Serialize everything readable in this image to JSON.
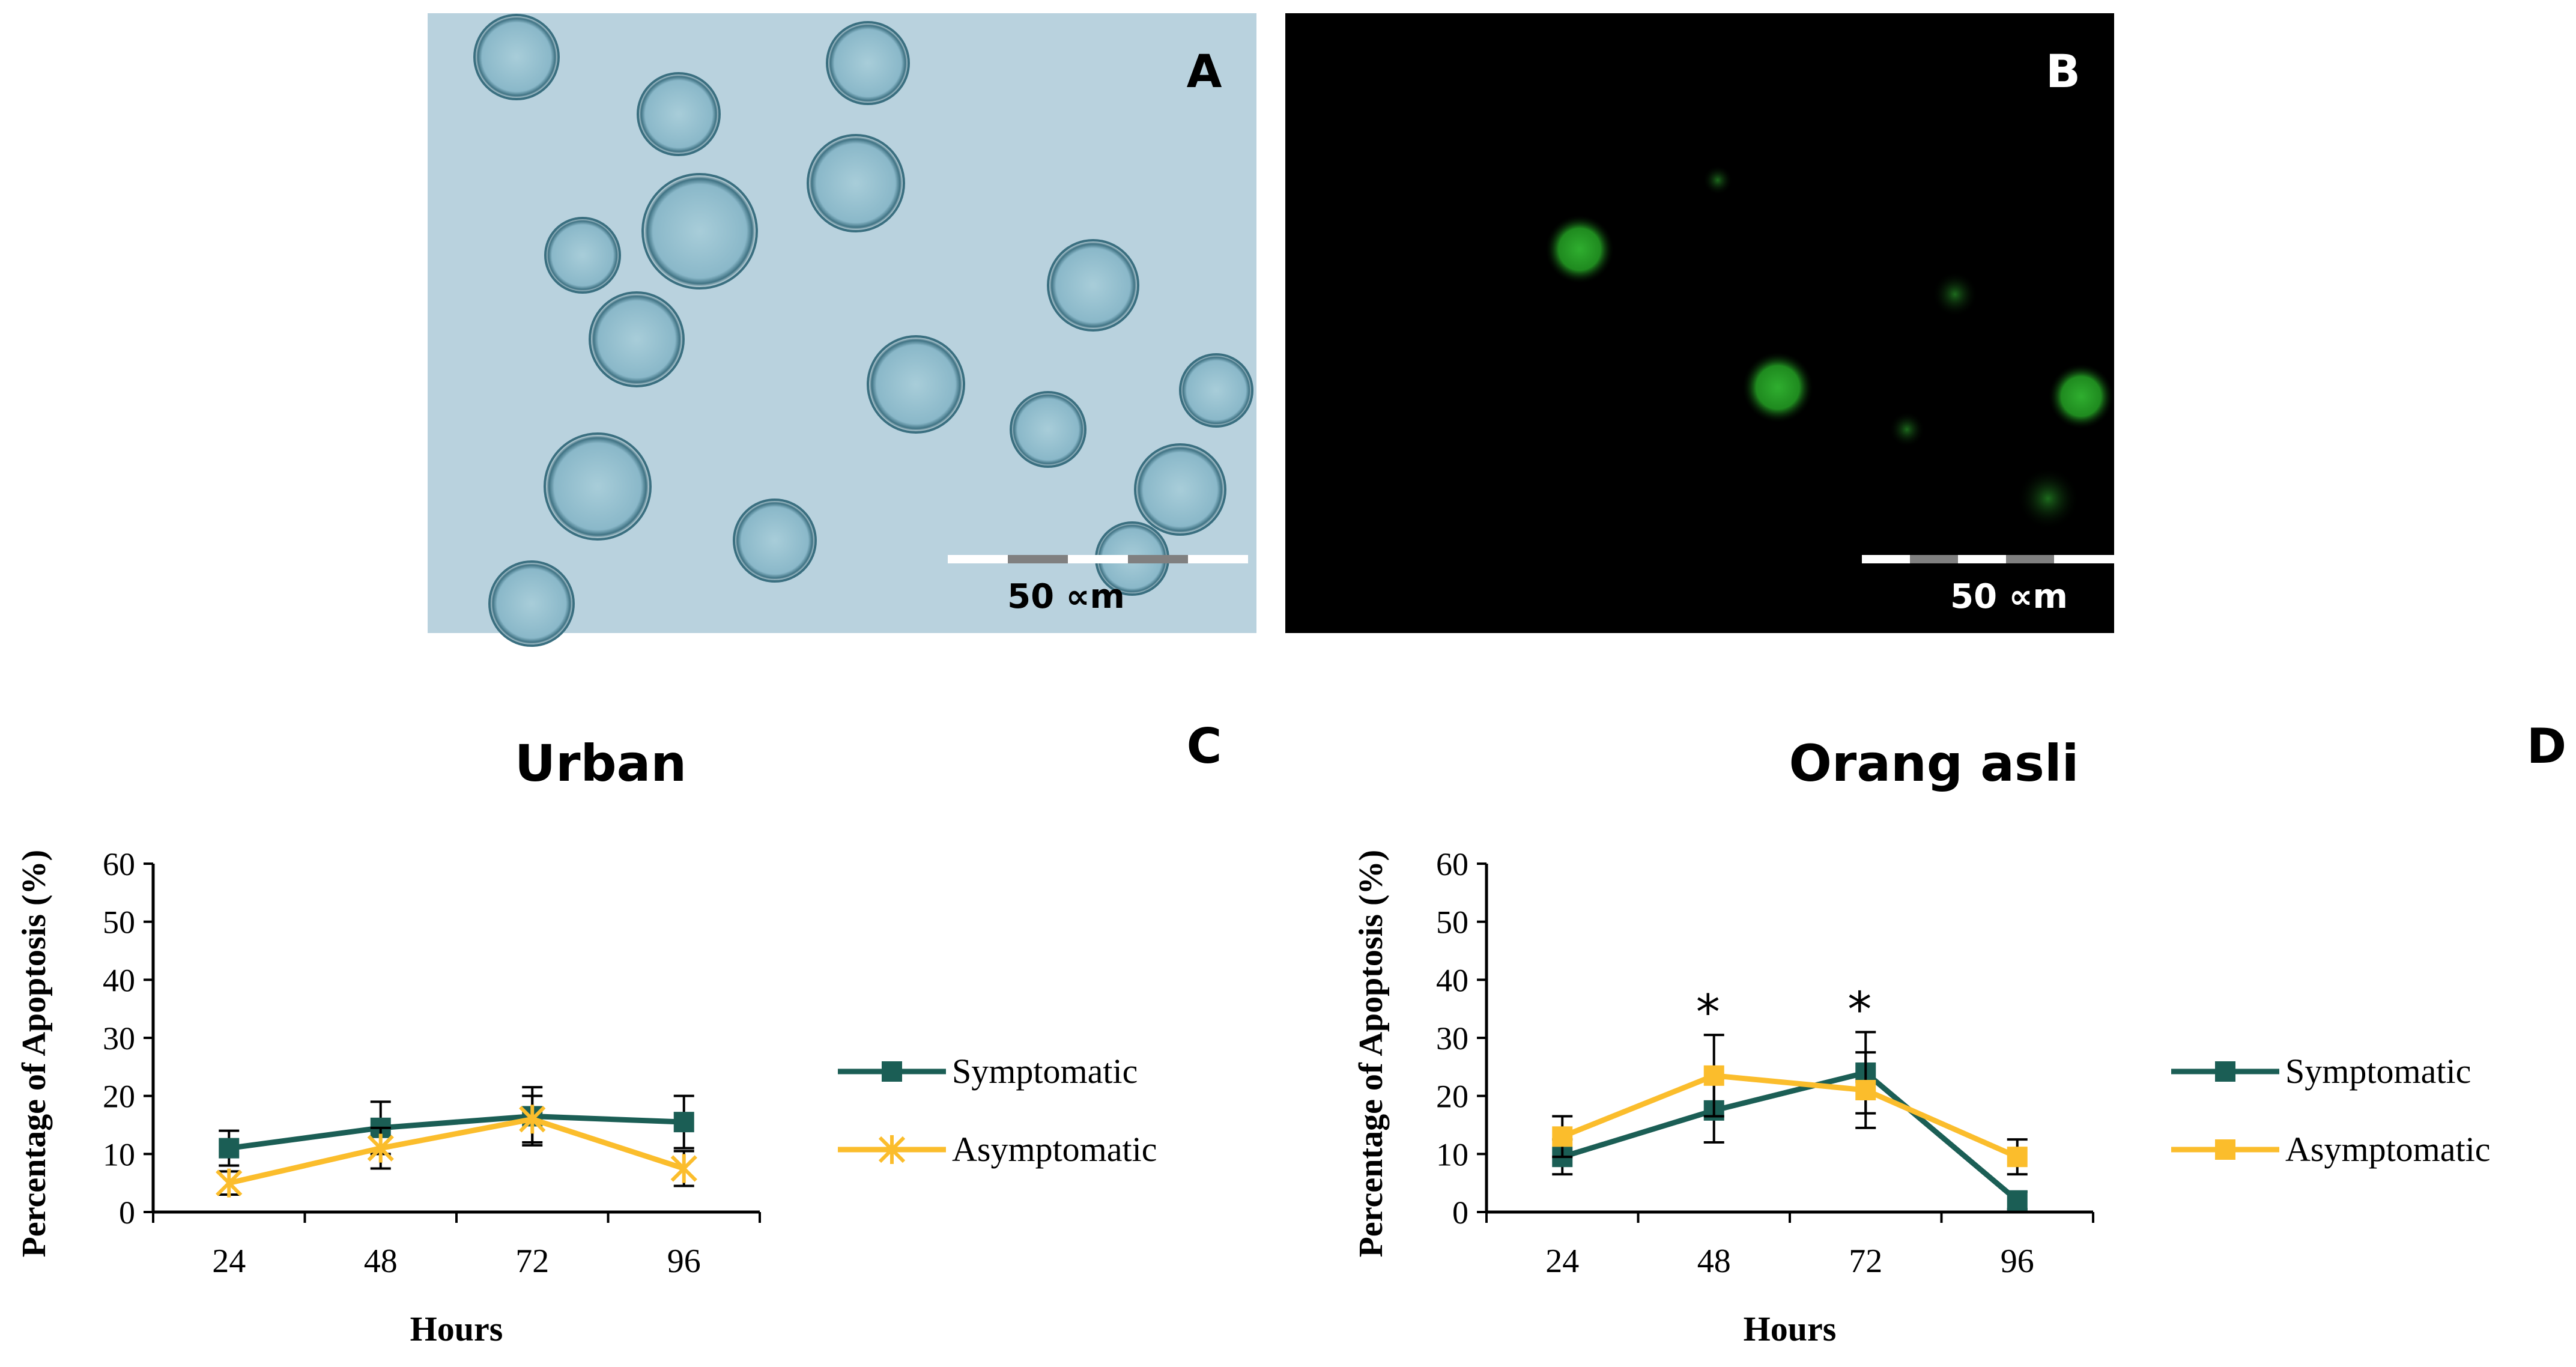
{
  "panels": {
    "a": {
      "letter": "A",
      "scale_label": "50 ∝m"
    },
    "b": {
      "letter": "B",
      "scale_label": "50 ∝m"
    }
  },
  "chart_data": [
    {
      "type": "line",
      "panel_letter": "C",
      "title": "Urban",
      "xlabel": "Hours",
      "ylabel": "Percentage of Apoptosis (%)",
      "categories": [
        "24",
        "48",
        "72",
        "96"
      ],
      "ylim": [
        0,
        60
      ],
      "yticks": [
        "0",
        "10",
        "20",
        "30",
        "40",
        "50",
        "60"
      ],
      "grid": false,
      "legend_position": "right",
      "series": [
        {
          "name": "Symptomatic",
          "color": "#1b5e55",
          "marker": "square",
          "values": [
            11,
            14.5,
            16.5,
            15.5
          ],
          "errors": [
            3,
            4.5,
            5,
            4.5
          ]
        },
        {
          "name": "Asymptomatic",
          "color": "#fbbd2c",
          "marker": "star",
          "values": [
            5,
            11,
            16,
            7.5
          ],
          "errors": [
            2,
            3.5,
            4,
            3
          ]
        }
      ],
      "annotations": []
    },
    {
      "type": "line",
      "panel_letter": "D",
      "title": "Orang asli",
      "xlabel": "Hours",
      "ylabel": "Percentage of Apoptosis (%)",
      "categories": [
        "24",
        "48",
        "72",
        "96"
      ],
      "ylim": [
        0,
        60
      ],
      "yticks": [
        "0",
        "10",
        "20",
        "30",
        "40",
        "50",
        "60"
      ],
      "grid": false,
      "legend_position": "right",
      "series": [
        {
          "name": "Symptomatic",
          "color": "#1b5e55",
          "marker": "square",
          "values": [
            9.5,
            17.5,
            24,
            2
          ],
          "errors": [
            3,
            5.5,
            7,
            1.5
          ]
        },
        {
          "name": "Asymptomatic",
          "color": "#fbbd2c",
          "marker": "square",
          "values": [
            13,
            23.5,
            21,
            9.5
          ],
          "errors": [
            3.5,
            7,
            6.5,
            3
          ]
        }
      ],
      "annotations": [
        {
          "category": "48",
          "text": "*"
        },
        {
          "category": "72",
          "text": "*"
        }
      ]
    }
  ]
}
